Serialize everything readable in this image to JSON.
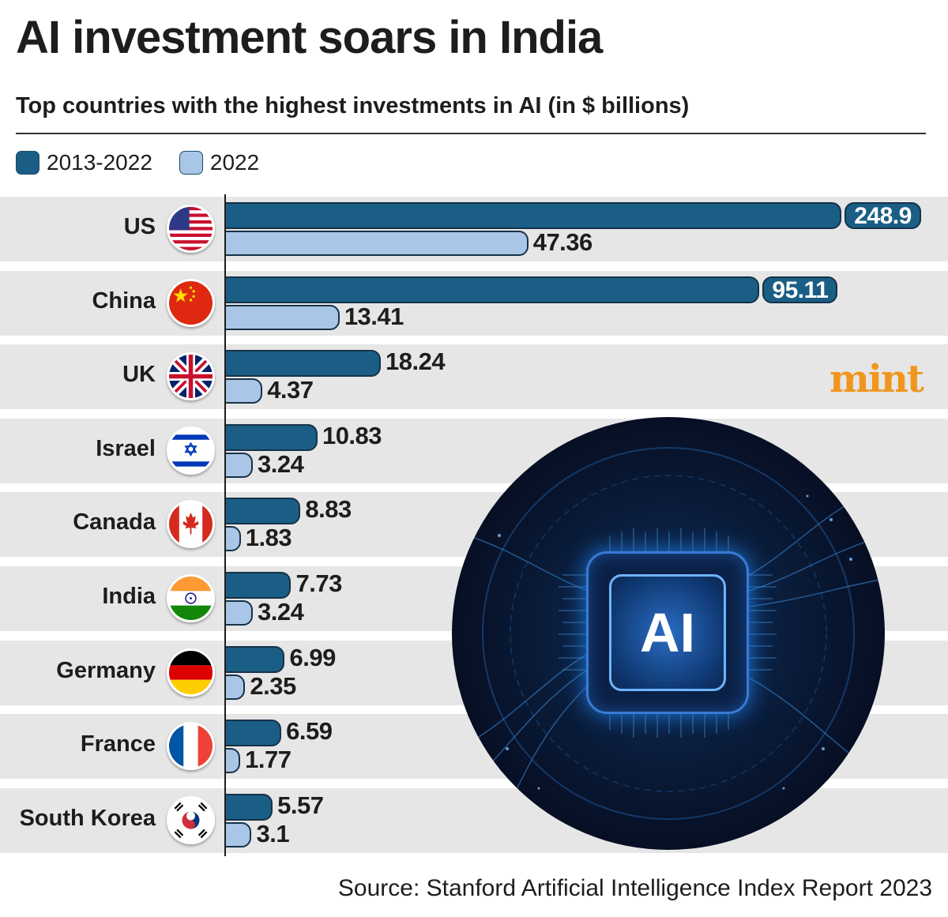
{
  "title": "AI investment soars in India",
  "subtitle": "Top countries with the highest investments in AI (in $ billions)",
  "legend": [
    {
      "label": "2013-2022",
      "color": "#1a5e85"
    },
    {
      "label": "2022",
      "color": "#a9c6e6"
    }
  ],
  "brand": "mint",
  "image_label": "AI",
  "source": "Source: Stanford Artificial Intelligence Index Report 2023",
  "chart_data": {
    "type": "bar",
    "orientation": "horizontal",
    "title": "AI investment soars in India",
    "subtitle": "Top countries with the highest investments in AI (in $ billions)",
    "categories": [
      "US",
      "China",
      "UK",
      "Israel",
      "Canada",
      "India",
      "Germany",
      "France",
      "South Korea"
    ],
    "series": [
      {
        "name": "2013-2022",
        "color": "#1a5e85",
        "values": [
          248.9,
          95.11,
          18.24,
          10.83,
          8.83,
          7.73,
          6.99,
          6.59,
          5.57
        ],
        "labels": [
          "248.9",
          "95.11",
          "18.24",
          "10.83",
          "8.83",
          "7.73",
          "6.99",
          "6.59",
          "5.57"
        ]
      },
      {
        "name": "2022",
        "color": "#a9c6e6",
        "values": [
          47.36,
          13.41,
          4.37,
          3.24,
          1.83,
          3.24,
          2.35,
          1.77,
          3.1
        ],
        "labels": [
          "47.36",
          "13.41",
          "4.37",
          "3.24",
          "1.83",
          "3.24",
          "2.35",
          "1.77",
          "3.1"
        ]
      }
    ],
    "legend_position": "top-left"
  }
}
